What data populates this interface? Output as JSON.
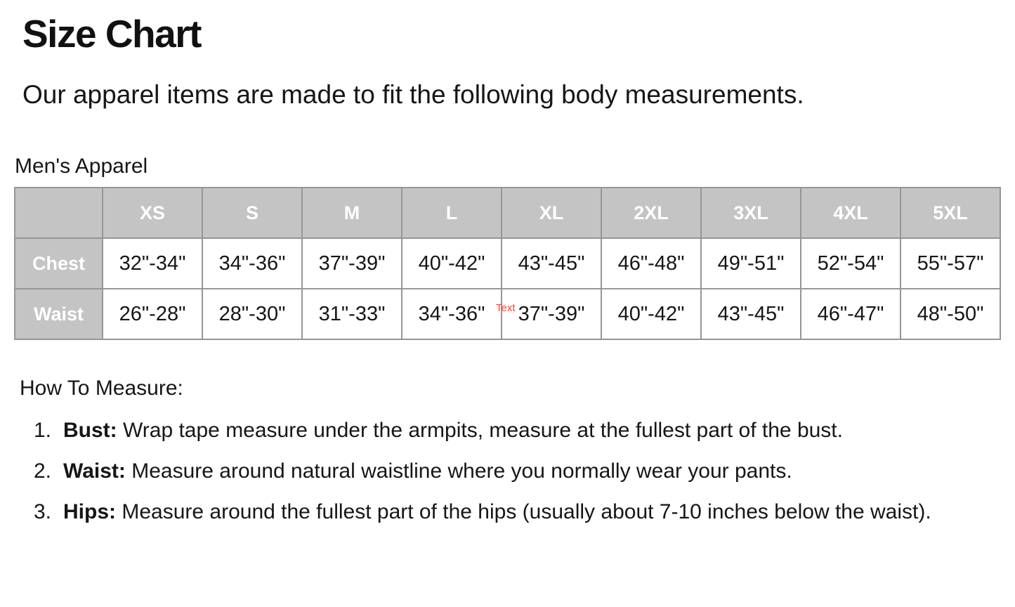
{
  "page": {
    "title": "Size Chart",
    "subtitle": "Our apparel items are made to fit the following body measurements.",
    "section_label": "Men's Apparel"
  },
  "size_table": {
    "columns": [
      "XS",
      "S",
      "M",
      "L",
      "XL",
      "2XL",
      "3XL",
      "4XL",
      "5XL"
    ],
    "rows": [
      {
        "label": "Chest",
        "values": [
          "32\"-34\"",
          "34\"-36\"",
          "37\"-39\"",
          "40\"-42\"",
          "43\"-45\"",
          "46\"-48\"",
          "49\"-51\"",
          "52\"-54\"",
          "55\"-57\""
        ]
      },
      {
        "label": "Waist",
        "values": [
          "26\"-28\"",
          "28\"-30\"",
          "31\"-33\"",
          "34\"-36\"",
          "37\"-39\"",
          "40\"-42\"",
          "43\"-45\"",
          "46\"-47\"",
          "48\"-50\""
        ]
      }
    ],
    "header_bg": "#c4c4c4",
    "header_text_color": "#ffffff",
    "border_color": "#969696"
  },
  "annotation": {
    "label": "Text",
    "color": "#ff4136"
  },
  "how_to_measure": {
    "heading": "How To Measure:",
    "items": [
      {
        "number": "1.",
        "term": "Bust:",
        "description": "Wrap tape measure under the armpits, measure at the fullest part of the bust."
      },
      {
        "number": "2.",
        "term": "Waist:",
        "description": "Measure around natural waistline where you normally wear your pants."
      },
      {
        "number": "3.",
        "term": "Hips:",
        "description": "Measure around the fullest part of the hips (usually about 7-10 inches below the waist)."
      }
    ]
  }
}
